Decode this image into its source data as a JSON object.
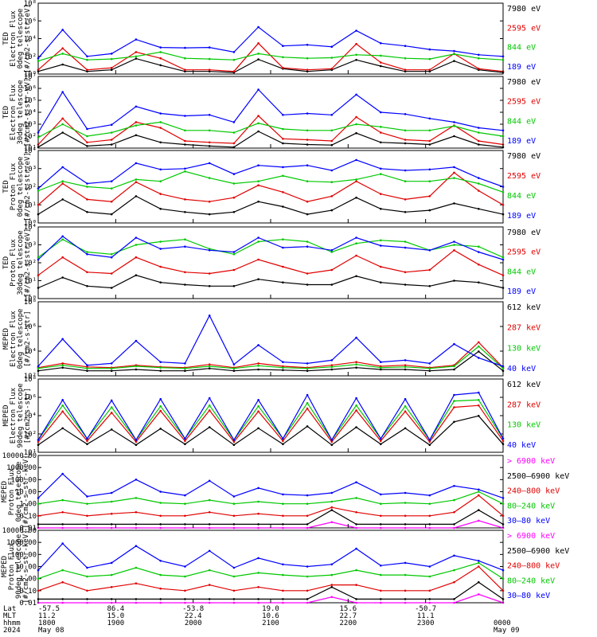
{
  "chart_data": [
    {
      "type": "line",
      "ylabel": [
        "TED",
        "Electron Flux",
        "0deg telescope",
        "[#/cm2-s-str-eV]"
      ],
      "ytick_labels": [
        "10⁰",
        "10²",
        "10⁴",
        "10⁶",
        "10⁸"
      ],
      "ylim": [
        1,
        100000000
      ],
      "yscale": "log",
      "series": [
        {
          "name": "7980 eV",
          "color": "#000000",
          "values": [
            2,
            12,
            2,
            3,
            55,
            10,
            2,
            2,
            1.5,
            45,
            4,
            2,
            3,
            40,
            8,
            2,
            2,
            30,
            3,
            1.5
          ]
        },
        {
          "name": "2595 eV",
          "color": "#e00000",
          "values": [
            3,
            800,
            3,
            5,
            300,
            60,
            3,
            3,
            2,
            3000,
            5,
            3,
            4,
            2500,
            20,
            3,
            3,
            200,
            4,
            2
          ]
        },
        {
          "name": "844 eV",
          "color": "#00c800",
          "values": [
            30,
            200,
            40,
            50,
            100,
            300,
            60,
            50,
            40,
            200,
            80,
            60,
            70,
            150,
            120,
            60,
            50,
            180,
            60,
            40
          ]
        },
        {
          "name": "189 eV",
          "color": "#0000ff",
          "values": [
            60,
            100000,
            100,
            200,
            8000,
            1000,
            900,
            1000,
            300,
            200000,
            1500,
            2000,
            1200,
            80000,
            3000,
            1500,
            600,
            400,
            150,
            100
          ]
        }
      ]
    },
    {
      "type": "line",
      "ylabel": [
        "TED",
        "Electron Flux",
        "30deg telescope",
        "[#/cm2-s-str-eV]"
      ],
      "ytick_labels": [
        "10¹",
        "10²",
        "10³",
        "10⁴",
        "10⁵",
        "10⁶",
        "10⁷"
      ],
      "ylim": [
        10,
        10000000
      ],
      "yscale": "log",
      "series": [
        {
          "name": "7980 eV",
          "color": "#000000",
          "values": [
            12,
            200,
            15,
            20,
            120,
            30,
            20,
            15,
            12,
            250,
            25,
            20,
            18,
            180,
            30,
            25,
            20,
            100,
            20,
            12
          ]
        },
        {
          "name": "2595 eV",
          "color": "#e00000",
          "values": [
            20,
            3000,
            30,
            50,
            1500,
            500,
            40,
            30,
            25,
            5000,
            60,
            50,
            40,
            4000,
            200,
            50,
            40,
            800,
            40,
            20
          ]
        },
        {
          "name": "844 eV",
          "color": "#00c800",
          "values": [
            80,
            1000,
            100,
            200,
            800,
            1500,
            300,
            300,
            200,
            1200,
            400,
            300,
            300,
            1000,
            600,
            300,
            300,
            700,
            200,
            100
          ]
        },
        {
          "name": "189 eV",
          "color": "#0000ff",
          "values": [
            200,
            500000,
            400,
            900,
            30000,
            8000,
            5000,
            6000,
            1500,
            800000,
            6000,
            8000,
            6000,
            300000,
            10000,
            7000,
            3000,
            1500,
            500,
            300
          ]
        }
      ]
    },
    {
      "type": "line",
      "ylabel": [
        "TED",
        "Proton Flux",
        "0deg telescope",
        "[#/cm2-s-str-eV]"
      ],
      "ytick_labels": [
        "10⁰",
        "10¹",
        "10²",
        "10³",
        "10⁴"
      ],
      "ylim": [
        1,
        10000
      ],
      "yscale": "log",
      "series": [
        {
          "name": "7980 eV",
          "color": "#000000",
          "values": [
            3,
            20,
            4,
            3,
            30,
            6,
            4,
            3,
            4,
            15,
            8,
            3,
            5,
            25,
            6,
            4,
            5,
            12,
            6,
            3
          ]
        },
        {
          "name": "2595 eV",
          "color": "#e00000",
          "values": [
            10,
            150,
            20,
            15,
            180,
            40,
            20,
            15,
            25,
            120,
            50,
            15,
            30,
            200,
            40,
            20,
            30,
            600,
            60,
            10
          ]
        },
        {
          "name": "844 eV",
          "color": "#00c800",
          "values": [
            60,
            200,
            100,
            80,
            250,
            200,
            700,
            300,
            150,
            200,
            400,
            200,
            180,
            250,
            500,
            200,
            200,
            300,
            150,
            50
          ]
        },
        {
          "name": "189 eV",
          "color": "#0000ff",
          "values": [
            80,
            1200,
            150,
            200,
            2000,
            900,
            1000,
            2000,
            500,
            1500,
            1200,
            1500,
            800,
            3000,
            1000,
            800,
            900,
            1200,
            300,
            100
          ]
        }
      ]
    },
    {
      "type": "line",
      "ylabel": [
        "TED",
        "Proton Flux",
        "30deg telescope",
        "[#/cm2-s-str-eV]"
      ],
      "ytick_labels": [
        "10⁰",
        "10¹",
        "10²",
        "10³",
        "10⁴"
      ],
      "ylim": [
        1,
        10000
      ],
      "yscale": "log",
      "series": [
        {
          "name": "7980 eV",
          "color": "#000000",
          "values": [
            4,
            15,
            5,
            4,
            20,
            8,
            6,
            5,
            5,
            12,
            8,
            6,
            6,
            18,
            8,
            6,
            5,
            10,
            8,
            4
          ]
        },
        {
          "name": "2595 eV",
          "color": "#e00000",
          "values": [
            20,
            200,
            30,
            25,
            200,
            60,
            30,
            25,
            40,
            150,
            60,
            25,
            40,
            250,
            60,
            30,
            40,
            500,
            80,
            20
          ]
        },
        {
          "name": "844 eV",
          "color": "#00c800",
          "values": [
            200,
            2000,
            400,
            300,
            1000,
            1500,
            2000,
            600,
            300,
            1500,
            2000,
            1500,
            400,
            1200,
            1800,
            1500,
            500,
            1000,
            800,
            200
          ]
        },
        {
          "name": "189 eV",
          "color": "#0000ff",
          "values": [
            150,
            3000,
            300,
            200,
            2500,
            600,
            800,
            500,
            400,
            2500,
            700,
            800,
            500,
            2500,
            900,
            700,
            500,
            1500,
            400,
            150
          ]
        }
      ]
    },
    {
      "type": "line",
      "ylabel": [
        "MEPED",
        "Electron Flux",
        "0deg telescope",
        "[#/cm2-s-str]"
      ],
      "ytick_labels": [
        "10²",
        "10⁴",
        "10⁶",
        "10⁸"
      ],
      "ylim": [
        10,
        100000000
      ],
      "yscale": "log",
      "series": [
        {
          "name": "612 keV",
          "color": "#000000",
          "values": [
            30,
            60,
            30,
            30,
            40,
            30,
            30,
            50,
            30,
            40,
            35,
            30,
            40,
            60,
            40,
            40,
            30,
            40,
            2000,
            30
          ]
        },
        {
          "name": "287 keV",
          "color": "#e00000",
          "values": [
            60,
            150,
            70,
            60,
            100,
            70,
            60,
            120,
            60,
            150,
            80,
            60,
            100,
            200,
            80,
            100,
            60,
            100,
            15000,
            60
          ]
        },
        {
          "name": "130 keV",
          "color": "#00c800",
          "values": [
            50,
            100,
            50,
            50,
            80,
            60,
            50,
            80,
            50,
            90,
            60,
            50,
            70,
            120,
            60,
            70,
            50,
            80,
            6000,
            50
          ]
        },
        {
          "name": "40 keV",
          "color": "#0000ff",
          "values": [
            80,
            30000,
            100,
            150,
            20000,
            200,
            150,
            5000000,
            120,
            8000,
            200,
            150,
            300,
            40000,
            200,
            300,
            150,
            10000,
            500,
            80
          ]
        }
      ]
    },
    {
      "type": "line",
      "ylabel": [
        "MEPED",
        "Electron Flux",
        "90deg telescope",
        "[#/cm2-s-str]"
      ],
      "ytick_labels": [
        "10¹",
        "10²",
        "10⁴",
        "10⁶",
        "10⁸"
      ],
      "ylim": [
        10,
        100000000
      ],
      "yscale": "log",
      "series": [
        {
          "name": "612 keV",
          "color": "#000000",
          "values": [
            50,
            2000,
            60,
            1500,
            50,
            1800,
            60,
            2500,
            50,
            2000,
            60,
            3000,
            50,
            2500,
            60,
            2000,
            50,
            8000,
            30000,
            60
          ]
        },
        {
          "name": "287 keV",
          "color": "#e00000",
          "values": [
            100,
            80000,
            120,
            60000,
            100,
            90000,
            120,
            100000,
            100,
            80000,
            120,
            150000,
            100,
            100000,
            120,
            80000,
            100,
            200000,
            300000,
            120
          ]
        },
        {
          "name": "130 keV",
          "color": "#00c800",
          "values": [
            150,
            300000,
            200,
            200000,
            150,
            250000,
            200,
            300000,
            150,
            250000,
            200,
            500000,
            150,
            300000,
            200,
            250000,
            150,
            800000,
            1000000,
            200
          ]
        },
        {
          "name": "40 keV",
          "color": "#0000ff",
          "values": [
            150,
            1000000,
            200,
            900000,
            150,
            1200000,
            200,
            1500000,
            150,
            1000000,
            200,
            3000000,
            150,
            1500000,
            200,
            1200000,
            150,
            3000000,
            5000000,
            200
          ]
        }
      ]
    },
    {
      "type": "line",
      "ylabel": [
        "MEPED",
        "Proton Flux",
        "0deg telescope",
        "[#/cm2-s-str-keV]"
      ],
      "ytick_labels": [
        "0.01",
        "0.10",
        "1.00",
        "10.00",
        "100.00",
        "1000.00",
        "10000.00"
      ],
      "ylim": [
        0.01,
        10000
      ],
      "yscale": "log",
      "series": [
        {
          "name": "> 6900 keV",
          "color": "#ff00ff",
          "values": [
            0.01,
            0.01,
            0.01,
            0.01,
            0.01,
            0.01,
            0.01,
            0.01,
            0.01,
            0.01,
            0.01,
            0.01,
            0.03,
            0.01,
            0.01,
            0.01,
            0.01,
            0.01,
            0.04,
            0.01
          ]
        },
        {
          "name": "2500–6900 keV",
          "color": "#000000",
          "values": [
            0.02,
            0.02,
            0.02,
            0.02,
            0.02,
            0.02,
            0.02,
            0.02,
            0.02,
            0.02,
            0.02,
            0.02,
            0.3,
            0.02,
            0.02,
            0.02,
            0.02,
            0.02,
            0.3,
            0.02
          ]
        },
        {
          "name": "240–800 keV",
          "color": "#e00000",
          "values": [
            0.1,
            0.2,
            0.1,
            0.15,
            0.2,
            0.1,
            0.1,
            0.2,
            0.1,
            0.15,
            0.1,
            0.1,
            0.5,
            0.2,
            0.1,
            0.1,
            0.1,
            0.2,
            5,
            0.1
          ]
        },
        {
          "name": "80–240 keV",
          "color": "#00c800",
          "values": [
            1,
            2,
            1,
            1.5,
            3,
            1.2,
            1,
            2,
            1,
            1.5,
            1,
            1,
            1.5,
            3,
            1,
            1.2,
            1,
            2,
            10,
            1
          ]
        },
        {
          "name": "30–80 keV",
          "color": "#0000ff",
          "values": [
            3,
            300,
            4,
            8,
            100,
            10,
            5,
            80,
            4,
            20,
            6,
            5,
            8,
            60,
            6,
            8,
            5,
            30,
            15,
            3
          ]
        }
      ]
    },
    {
      "type": "line",
      "ylabel": [
        "MEPED",
        "Proton Flux",
        "90deg telescope",
        "[#/cm2-s-str-keV]"
      ],
      "ytick_labels": [
        "0.01",
        "0.10",
        "1.00",
        "10.00",
        "100.00",
        "1000.00",
        "10000.00"
      ],
      "ylim": [
        0.01,
        10000
      ],
      "yscale": "log",
      "series": [
        {
          "name": "> 6900 keV",
          "color": "#ff00ff",
          "values": [
            0.01,
            0.01,
            0.01,
            0.01,
            0.01,
            0.01,
            0.01,
            0.01,
            0.01,
            0.01,
            0.01,
            0.01,
            0.03,
            0.01,
            0.01,
            0.01,
            0.01,
            0.01,
            0.05,
            0.01
          ]
        },
        {
          "name": "2500–6900 keV",
          "color": "#000000",
          "values": [
            0.02,
            0.02,
            0.02,
            0.02,
            0.02,
            0.02,
            0.02,
            0.02,
            0.02,
            0.02,
            0.02,
            0.02,
            0.2,
            0.02,
            0.02,
            0.02,
            0.02,
            0.02,
            0.5,
            0.02
          ]
        },
        {
          "name": "240–800 keV",
          "color": "#e00000",
          "values": [
            0.1,
            0.5,
            0.1,
            0.2,
            0.4,
            0.15,
            0.1,
            0.3,
            0.1,
            0.2,
            0.1,
            0.1,
            0.3,
            0.3,
            0.1,
            0.1,
            0.1,
            0.5,
            10,
            0.1
          ]
        },
        {
          "name": "80–240 keV",
          "color": "#00c800",
          "values": [
            1,
            5,
            1.5,
            2,
            8,
            2,
            1.5,
            5,
            1.5,
            3,
            2,
            1.5,
            2,
            5,
            2,
            2,
            1.5,
            5,
            20,
            1
          ]
        },
        {
          "name": "30–80 keV",
          "color": "#0000ff",
          "values": [
            5,
            800,
            8,
            20,
            500,
            30,
            10,
            200,
            8,
            50,
            15,
            10,
            15,
            300,
            12,
            20,
            10,
            80,
            30,
            5
          ]
        }
      ]
    }
  ],
  "x_axis": {
    "row_labels": [
      "Lat",
      "MLT",
      "hhmm",
      "2024"
    ],
    "ticks": [
      {
        "lat": "-57.5",
        "mlt": "11.2",
        "hhmm": "1800",
        "date": "May 08"
      },
      {
        "lat": "86.4",
        "mlt": "15.0",
        "hhmm": "1900",
        "date": ""
      },
      {
        "lat": "-53.8",
        "mlt": "22.4",
        "hhmm": "2000",
        "date": ""
      },
      {
        "lat": "19.0",
        "mlt": "10.6",
        "hhmm": "2100",
        "date": ""
      },
      {
        "lat": "15.6",
        "mlt": "22.7",
        "hhmm": "2200",
        "date": ""
      },
      {
        "lat": "-50.7",
        "mlt": "11.1",
        "hhmm": "2300",
        "date": ""
      },
      {
        "lat": "",
        "mlt": "",
        "hhmm": "0000",
        "date": "May 09"
      }
    ]
  }
}
